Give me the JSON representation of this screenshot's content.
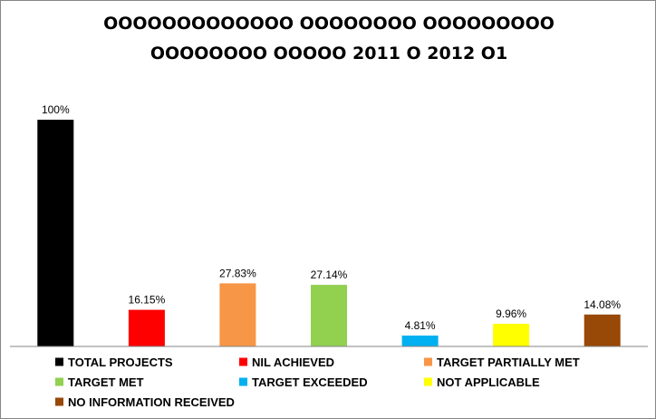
{
  "chart_data": {
    "type": "bar",
    "title": [
      "OOOOOOOOOOOOO OOOOOOOO OOOOOOOOO",
      "OOOOOOOO OOOOO 2011 O 2012 O1"
    ],
    "categories": [
      "TOTAL PROJECTS",
      "NIL ACHIEVED",
      "TARGET PARTIALLY MET",
      "TARGET MET",
      "TARGET EXCEEDED",
      "NOT APPLICABLE",
      "NO INFORMATION RECEIVED"
    ],
    "values": [
      100,
      16.15,
      27.83,
      27.14,
      4.81,
      9.96,
      14.08
    ],
    "value_labels": [
      "100%",
      "16.15%",
      "27.83%",
      "27.14%",
      "4.81%",
      "9.96%",
      "14.08%"
    ],
    "colors": [
      "#000000",
      "#ff0000",
      "#f79646",
      "#92d050",
      "#00b0f0",
      "#ffff00",
      "#984807"
    ],
    "ylim": [
      0,
      100
    ],
    "grid": false,
    "legend_position": "bottom"
  }
}
